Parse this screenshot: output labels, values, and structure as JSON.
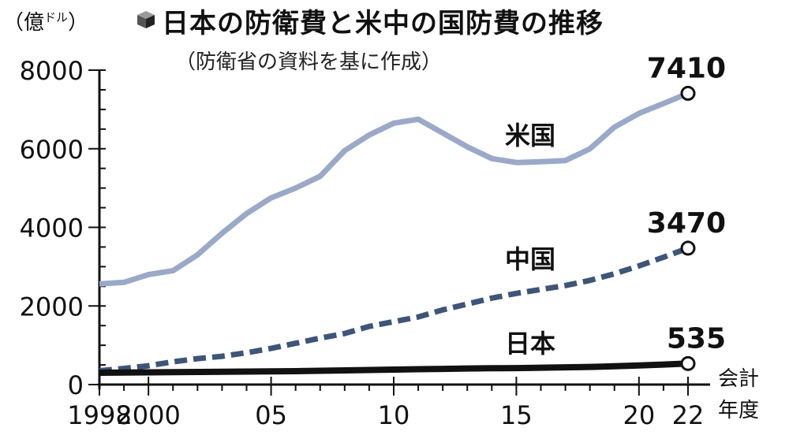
{
  "header": {
    "title": "日本の防衛費と米中の国防費の推移",
    "subtitle": "（防衛省の資料を基に作成）",
    "unit_prefix": "（億",
    "unit_small": "ドル",
    "unit_suffix": "）",
    "x_unit_line1": "会計",
    "x_unit_line2": "年度"
  },
  "chart_data": {
    "type": "line",
    "title": "日本の防衛費と米中の国防費の推移",
    "subtitle": "（防衛省の資料を基に作成）",
    "ylabel": "（億ドル）",
    "xlabel": "会計年度",
    "ylim": [
      0,
      8000
    ],
    "xlim": [
      1998,
      2022
    ],
    "y_ticks": [
      0,
      2000,
      4000,
      6000,
      8000
    ],
    "y_tick_labels": [
      "0",
      "2000",
      "4000",
      "6000",
      "8000"
    ],
    "x_ticks": [
      1998,
      2000,
      2005,
      2010,
      2015,
      2020,
      2022
    ],
    "x_tick_labels": [
      "1998",
      "2000",
      "05",
      "10",
      "15",
      "20",
      "22"
    ],
    "grid": false,
    "series": [
      {
        "name": "米国",
        "style": "solid",
        "color": "#9aa9c8",
        "x": [
          1998,
          1999,
          2000,
          2001,
          2002,
          2003,
          2004,
          2005,
          2006,
          2007,
          2008,
          2009,
          2010,
          2011,
          2012,
          2013,
          2014,
          2015,
          2016,
          2017,
          2018,
          2019,
          2020,
          2021,
          2022
        ],
        "y": [
          2560,
          2600,
          2800,
          2900,
          3300,
          3850,
          4350,
          4750,
          5000,
          5300,
          5950,
          6350,
          6650,
          6750,
          6400,
          6050,
          5750,
          5650,
          5670,
          5700,
          6000,
          6550,
          6900,
          7150,
          7410
        ],
        "end_label": "7410"
      },
      {
        "name": "中国",
        "style": "dashed",
        "color": "#3d5578",
        "x": [
          1998,
          1999,
          2000,
          2001,
          2002,
          2003,
          2004,
          2005,
          2006,
          2007,
          2008,
          2009,
          2010,
          2011,
          2012,
          2013,
          2014,
          2015,
          2016,
          2017,
          2018,
          2019,
          2020,
          2021,
          2022
        ],
        "y": [
          350,
          410,
          480,
          580,
          660,
          720,
          810,
          920,
          1050,
          1180,
          1300,
          1480,
          1600,
          1720,
          1900,
          2050,
          2200,
          2320,
          2420,
          2520,
          2650,
          2820,
          3020,
          3240,
          3470
        ],
        "end_label": "3470"
      },
      {
        "name": "日本",
        "style": "solid",
        "color": "#111111",
        "x": [
          1998,
          1999,
          2000,
          2001,
          2002,
          2003,
          2004,
          2005,
          2006,
          2007,
          2008,
          2009,
          2010,
          2011,
          2012,
          2013,
          2014,
          2015,
          2016,
          2017,
          2018,
          2019,
          2020,
          2021,
          2022
        ],
        "y": [
          300,
          305,
          310,
          315,
          320,
          325,
          330,
          335,
          340,
          350,
          360,
          370,
          380,
          390,
          400,
          410,
          415,
          420,
          430,
          440,
          450,
          465,
          485,
          510,
          535
        ],
        "end_label": "535"
      }
    ]
  }
}
